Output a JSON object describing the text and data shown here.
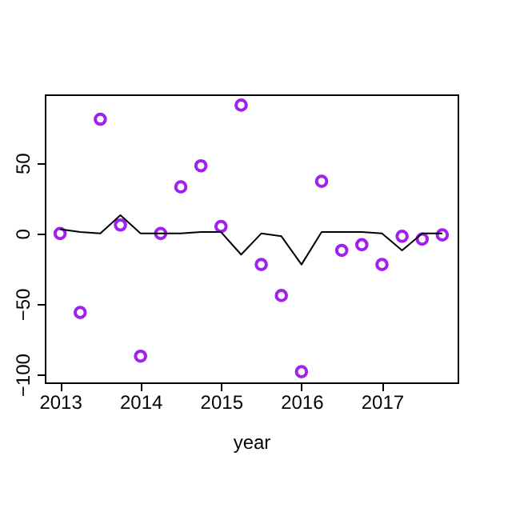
{
  "chart_data": {
    "type": "scatter",
    "xlabel": "year",
    "xlim": [
      2012.81,
      2017.94
    ],
    "xticks": [
      2013,
      2014,
      2015,
      2016,
      2017
    ],
    "ylim": [
      -105.6,
      98.6
    ],
    "yticks": [
      -100,
      -50,
      0,
      50
    ],
    "grid": false,
    "x": [
      2013,
      2013.25,
      2013.5,
      2013.75,
      2014,
      2014.25,
      2014.5,
      2014.75,
      2015,
      2015.25,
      2015.5,
      2015.75,
      2016,
      2016.25,
      2016.5,
      2016.75,
      2017,
      2017.25,
      2017.5,
      2017.75
    ],
    "series": [
      {
        "marker": "circle",
        "color": "#a020f0",
        "values": [
          0,
          -56,
          81,
          6,
          -87,
          0,
          33,
          48,
          5,
          91,
          -22,
          -44,
          -98,
          37,
          -12,
          -8,
          -22,
          -2,
          -4,
          -1
        ]
      },
      {
        "type": "line",
        "marker": "none",
        "line_style": "solid",
        "color": "#000000",
        "values": [
          3,
          1,
          0,
          13,
          0,
          0,
          0,
          1,
          1,
          -15,
          0,
          -2,
          -22,
          1,
          1,
          1,
          0,
          -12,
          0,
          0
        ]
      }
    ]
  }
}
